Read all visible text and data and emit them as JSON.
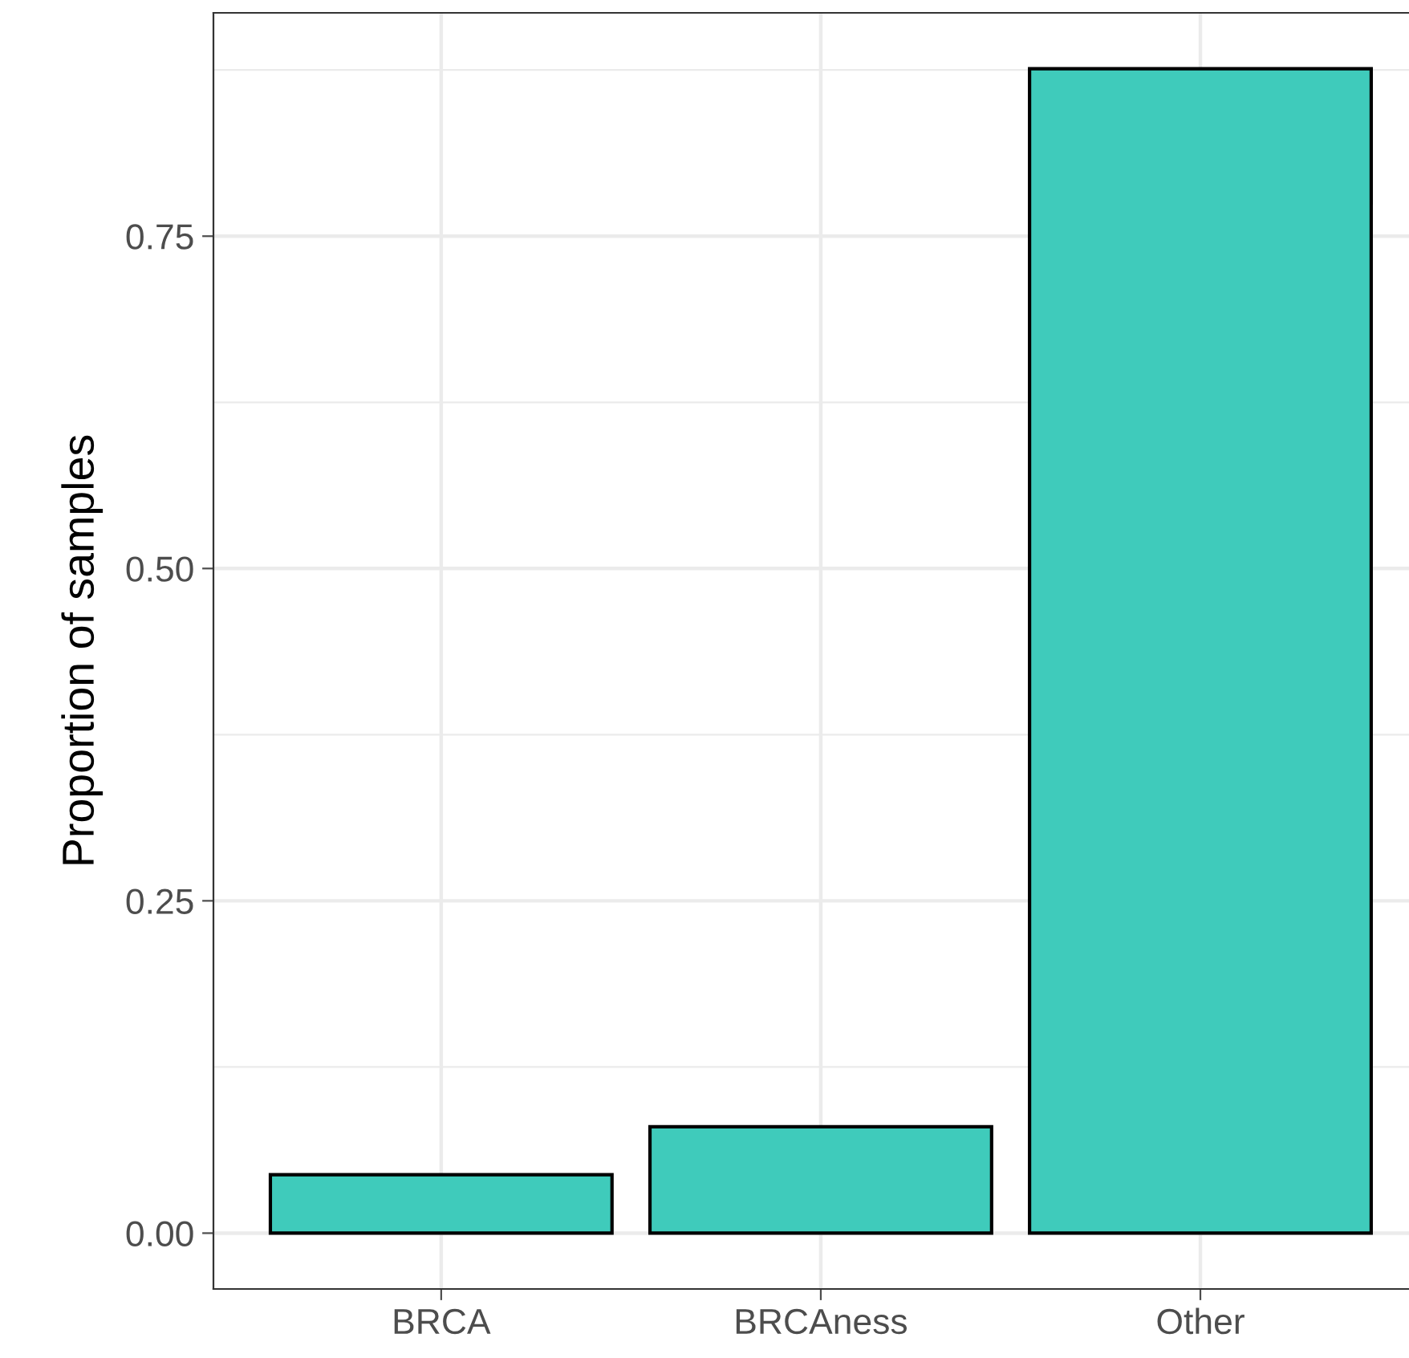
{
  "chart_data": {
    "type": "bar",
    "ylabel": "Proportion of samples",
    "categories": [
      "BRCA",
      "BRCAness",
      "Other"
    ],
    "values": [
      0.044,
      0.08,
      0.876
    ],
    "color": "#3fcbbb",
    "ylim": [
      -0.042,
      0.918
    ],
    "yticks": [
      {
        "value": 0,
        "label": "0.00"
      },
      {
        "value": 0.25,
        "label": "0.25"
      },
      {
        "value": 0.5,
        "label": "0.50"
      },
      {
        "value": 0.75,
        "label": "0.75"
      }
    ],
    "grid": true
  }
}
